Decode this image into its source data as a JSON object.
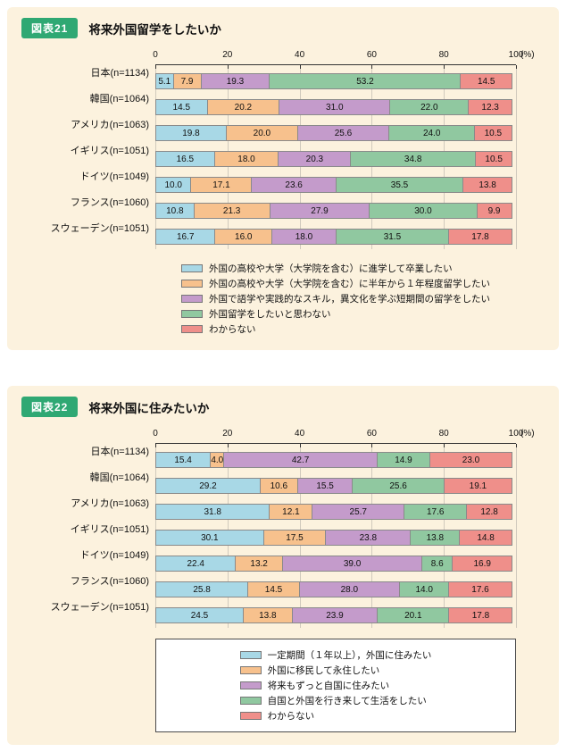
{
  "palette": {
    "badge_green": "#2fa873",
    "panel_cream": "#fcf2de",
    "series_cyan": "#a8d8e6",
    "series_orange": "#f7c18d",
    "series_purple": "#c49bcb",
    "series_green": "#90c8a0",
    "series_red": "#ef8f8a"
  },
  "chart_data": [
    {
      "type": "bar",
      "stacked": true,
      "orientation": "horizontal",
      "badge": "図表21",
      "title": "将来外国留学をしたいか",
      "unit_label": "(%)",
      "xlim": [
        0,
        100
      ],
      "ticks": [
        0,
        20,
        40,
        60,
        80,
        100
      ],
      "grid": true,
      "legend_boxed": false,
      "legend_position": "bottom",
      "categories": [
        "日本(n=1134)",
        "韓国(n=1064)",
        "アメリカ(n=1063)",
        "イギリス(n=1051)",
        "ドイツ(n=1049)",
        "フランス(n=1060)",
        "スウェーデン(n=1051)"
      ],
      "series": [
        {
          "name": "外国の高校や大学（大学院を含む）に進学して卒業したい",
          "color": "#a8d8e6",
          "values": [
            5.1,
            14.5,
            19.8,
            16.5,
            10.0,
            10.8,
            16.7
          ]
        },
        {
          "name": "外国の高校や大学（大学院を含む）に半年から１年程度留学したい",
          "color": "#f7c18d",
          "values": [
            7.9,
            20.2,
            20.0,
            18.0,
            17.1,
            21.3,
            16.0
          ]
        },
        {
          "name": "外国で語学や実践的なスキル，異文化を学ぶ短期間の留学をしたい",
          "color": "#c49bcb",
          "values": [
            19.3,
            31.0,
            25.6,
            20.3,
            23.6,
            27.9,
            18.0
          ]
        },
        {
          "name": "外国留学をしたいと思わない",
          "color": "#90c8a0",
          "values": [
            53.2,
            22.0,
            24.0,
            34.8,
            35.5,
            30.0,
            31.5
          ]
        },
        {
          "name": "わからない",
          "color": "#ef8f8a",
          "values": [
            14.5,
            12.3,
            10.5,
            10.5,
            13.8,
            9.9,
            17.8
          ]
        }
      ]
    },
    {
      "type": "bar",
      "stacked": true,
      "orientation": "horizontal",
      "badge": "図表22",
      "title": "将来外国に住みたいか",
      "unit_label": "(%)",
      "xlim": [
        0,
        100
      ],
      "ticks": [
        0,
        20,
        40,
        60,
        80,
        100
      ],
      "grid": true,
      "legend_boxed": true,
      "legend_position": "bottom",
      "categories": [
        "日本(n=1134)",
        "韓国(n=1064)",
        "アメリカ(n=1063)",
        "イギリス(n=1051)",
        "ドイツ(n=1049)",
        "フランス(n=1060)",
        "スウェーデン(n=1051)"
      ],
      "series": [
        {
          "name": "一定期間（１年以上），外国に住みたい",
          "color": "#a8d8e6",
          "values": [
            15.4,
            29.2,
            31.8,
            30.1,
            22.4,
            25.8,
            24.5
          ]
        },
        {
          "name": "外国に移民して永住したい",
          "color": "#f7c18d",
          "values": [
            4.0,
            10.6,
            12.1,
            17.5,
            13.2,
            14.5,
            13.8
          ]
        },
        {
          "name": "将来もずっと自国に住みたい",
          "color": "#c49bcb",
          "values": [
            42.7,
            15.5,
            25.7,
            23.8,
            39.0,
            28.0,
            23.9
          ]
        },
        {
          "name": "自国と外国を行き来して生活をしたい",
          "color": "#90c8a0",
          "values": [
            14.9,
            25.6,
            17.6,
            13.8,
            8.6,
            14.0,
            20.1
          ]
        },
        {
          "name": "わからない",
          "color": "#ef8f8a",
          "values": [
            23.0,
            19.1,
            12.8,
            14.8,
            16.9,
            17.6,
            17.8
          ]
        }
      ]
    }
  ]
}
